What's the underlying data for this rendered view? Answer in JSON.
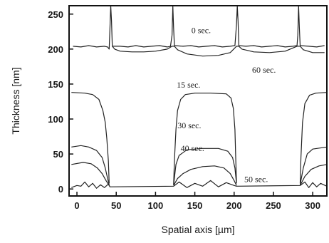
{
  "chart_data": {
    "type": "line",
    "title": "",
    "xlabel": "Spatial axis [µm]",
    "ylabel": "Thickness [nm]",
    "xlim": [
      -10,
      318
    ],
    "ylim": [
      -10,
      262
    ],
    "x_ticks": [
      0,
      50,
      100,
      150,
      200,
      250,
      300
    ],
    "y_ticks": [
      0,
      50,
      100,
      150,
      200,
      250
    ],
    "grid": false,
    "series": [
      {
        "name": "",
        "values": [
          [
            -5,
            204
          ],
          [
            5,
            203
          ],
          [
            15,
            205
          ],
          [
            25,
            203
          ],
          [
            35,
            204
          ],
          [
            39,
            203
          ],
          [
            41,
            200
          ],
          [
            42,
            230
          ],
          [
            43,
            262
          ],
          [
            44,
            240
          ],
          [
            45,
            204
          ],
          [
            55,
            204
          ],
          [
            65,
            203
          ],
          [
            75,
            205
          ],
          [
            85,
            203
          ],
          [
            95,
            204
          ],
          [
            105,
            205
          ],
          [
            115,
            203
          ],
          [
            119,
            204
          ],
          [
            121,
            220
          ],
          [
            122,
            262
          ],
          [
            123,
            230
          ],
          [
            124,
            205
          ],
          [
            135,
            204
          ],
          [
            145,
            205
          ],
          [
            155,
            203
          ],
          [
            165,
            204
          ],
          [
            175,
            205
          ],
          [
            185,
            203
          ],
          [
            195,
            204
          ],
          [
            201,
            205
          ],
          [
            203,
            235
          ],
          [
            204,
            262
          ],
          [
            205,
            240
          ],
          [
            206,
            205
          ],
          [
            215,
            204
          ],
          [
            225,
            205
          ],
          [
            235,
            203
          ],
          [
            245,
            204
          ],
          [
            255,
            205
          ],
          [
            265,
            203
          ],
          [
            275,
            204
          ],
          [
            280,
            205
          ],
          [
            281,
            220
          ],
          [
            282,
            262
          ],
          [
            283,
            230
          ],
          [
            284,
            205
          ],
          [
            295,
            204
          ],
          [
            305,
            203
          ],
          [
            315,
            205
          ]
        ]
      },
      {
        "name": "",
        "values": [
          [
            45,
            204
          ],
          [
            48,
            200
          ],
          [
            55,
            197
          ],
          [
            70,
            196
          ],
          [
            85,
            196
          ],
          [
            100,
            197
          ],
          [
            115,
            200
          ],
          [
            121,
            204
          ],
          [
            124,
            204
          ],
          [
            128,
            199
          ],
          [
            140,
            193
          ],
          [
            160,
            190
          ],
          [
            180,
            191
          ],
          [
            195,
            195
          ],
          [
            203,
            204
          ],
          [
            206,
            204
          ],
          [
            210,
            200
          ],
          [
            225,
            196
          ],
          [
            245,
            195
          ],
          [
            265,
            197
          ],
          [
            280,
            204
          ],
          [
            284,
            204
          ],
          [
            288,
            199
          ],
          [
            300,
            195
          ],
          [
            315,
            195
          ]
        ]
      },
      {
        "name": "",
        "values": [
          [
            -7,
            138
          ],
          [
            10,
            137
          ],
          [
            20,
            135
          ],
          [
            28,
            128
          ],
          [
            33,
            112
          ],
          [
            36,
            95
          ],
          [
            38,
            72
          ],
          [
            40,
            40
          ],
          [
            41,
            8
          ]
        ]
      },
      {
        "name": "",
        "values": [
          [
            123,
            6
          ],
          [
            124,
            40
          ],
          [
            126,
            85
          ],
          [
            128,
            112
          ],
          [
            132,
            128
          ],
          [
            138,
            135
          ],
          [
            150,
            137
          ],
          [
            170,
            137
          ],
          [
            190,
            136
          ],
          [
            196,
            130
          ],
          [
            199,
            115
          ],
          [
            201,
            85
          ],
          [
            202,
            45
          ],
          [
            203,
            8
          ]
        ]
      },
      {
        "name": "",
        "values": [
          [
            284,
            8
          ],
          [
            285,
            45
          ],
          [
            287,
            95
          ],
          [
            290,
            122
          ],
          [
            296,
            134
          ],
          [
            304,
            137
          ],
          [
            318,
            138
          ]
        ]
      },
      {
        "name": "",
        "values": [
          [
            -7,
            60
          ],
          [
            5,
            62
          ],
          [
            15,
            60
          ],
          [
            25,
            55
          ],
          [
            32,
            45
          ],
          [
            36,
            30
          ],
          [
            39,
            15
          ],
          [
            41,
            6
          ]
        ]
      },
      {
        "name": "",
        "values": [
          [
            123,
            6
          ],
          [
            126,
            35
          ],
          [
            130,
            48
          ],
          [
            140,
            56
          ],
          [
            160,
            58
          ],
          [
            180,
            58
          ],
          [
            192,
            54
          ],
          [
            198,
            45
          ],
          [
            201,
            30
          ],
          [
            203,
            8
          ]
        ]
      },
      {
        "name": "",
        "values": [
          [
            284,
            6
          ],
          [
            288,
            30
          ],
          [
            293,
            50
          ],
          [
            300,
            57
          ],
          [
            318,
            60
          ]
        ]
      },
      {
        "name": "",
        "values": [
          [
            -7,
            35
          ],
          [
            8,
            38
          ],
          [
            18,
            36
          ],
          [
            26,
            30
          ],
          [
            32,
            22
          ],
          [
            37,
            12
          ],
          [
            41,
            5
          ]
        ]
      },
      {
        "name": "",
        "values": [
          [
            123,
            5
          ],
          [
            128,
            15
          ],
          [
            135,
            22
          ],
          [
            145,
            28
          ],
          [
            160,
            32
          ],
          [
            175,
            33
          ],
          [
            187,
            30
          ],
          [
            195,
            22
          ],
          [
            200,
            12
          ],
          [
            203,
            5
          ]
        ]
      },
      {
        "name": "",
        "values": [
          [
            284,
            5
          ],
          [
            290,
            18
          ],
          [
            298,
            28
          ],
          [
            308,
            33
          ],
          [
            318,
            35
          ]
        ]
      },
      {
        "name": "",
        "values": [
          [
            -7,
            2
          ],
          [
            0,
            5
          ],
          [
            5,
            4
          ],
          [
            10,
            10
          ],
          [
            15,
            3
          ],
          [
            20,
            8
          ],
          [
            25,
            1
          ],
          [
            30,
            6
          ],
          [
            35,
            2
          ],
          [
            40,
            7
          ],
          [
            42,
            3
          ],
          [
            123,
            4
          ],
          [
            130,
            10
          ],
          [
            140,
            2
          ],
          [
            150,
            8
          ],
          [
            160,
            4
          ],
          [
            170,
            12
          ],
          [
            180,
            3
          ],
          [
            190,
            9
          ],
          [
            200,
            5
          ],
          [
            203,
            4
          ],
          [
            284,
            5
          ],
          [
            290,
            10
          ],
          [
            295,
            2
          ],
          [
            300,
            9
          ],
          [
            305,
            3
          ],
          [
            310,
            8
          ],
          [
            318,
            4
          ]
        ]
      }
    ],
    "annotations": [
      {
        "text": "0 sec.",
        "x": 158,
        "y": 223
      },
      {
        "text": "60 sec.",
        "x": 238,
        "y": 166
      },
      {
        "text": "15 sec.",
        "x": 142,
        "y": 145
      },
      {
        "text": "30 sec.",
        "x": 143,
        "y": 87
      },
      {
        "text": "40 sec.",
        "x": 147,
        "y": 54
      },
      {
        "text": "50 sec.",
        "x": 228,
        "y": 10
      }
    ]
  }
}
